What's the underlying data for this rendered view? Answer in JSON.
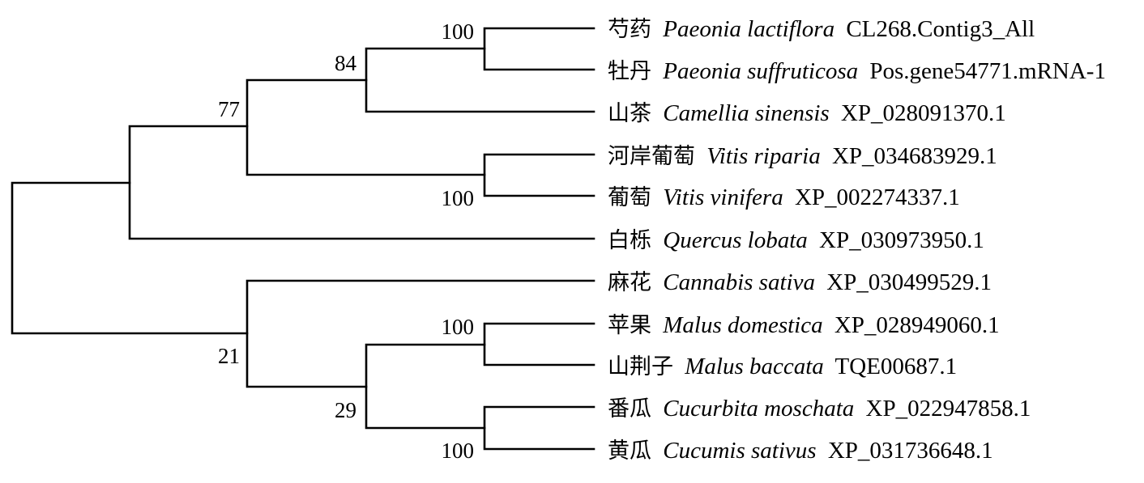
{
  "tree": {
    "taxa": [
      {
        "cn": "芍药",
        "species": "Paeonia lactiflora",
        "accession": "CL268.Contig3_All"
      },
      {
        "cn": "牡丹",
        "species": "Paeonia suffruticosa",
        "accession": "Pos.gene54771.mRNA-1"
      },
      {
        "cn": "山茶",
        "species": "Camellia sinensis",
        "accession": "XP_028091370.1"
      },
      {
        "cn": "河岸葡萄",
        "species": "Vitis riparia",
        "accession": "XP_034683929.1"
      },
      {
        "cn": "葡萄",
        "species": "Vitis vinifera",
        "accession": "XP_002274337.1"
      },
      {
        "cn": "白栎",
        "species": "Quercus lobata",
        "accession": "XP_030973950.1"
      },
      {
        "cn": "麻花",
        "species": "Cannabis sativa",
        "accession": "XP_030499529.1"
      },
      {
        "cn": "苹果",
        "species": "Malus domestica",
        "accession": "XP_028949060.1"
      },
      {
        "cn": "山荆子",
        "species": "Malus baccata",
        "accession": "TQE00687.1"
      },
      {
        "cn": "番瓜",
        "species": "Cucurbita moschata",
        "accession": "XP_022947858.1"
      },
      {
        "cn": "黄瓜",
        "species": "Cucumis sativus",
        "accession": "XP_031736648.1"
      }
    ],
    "bootstrap": [
      {
        "id": "paeonia-clade",
        "value": "100"
      },
      {
        "id": "paeonia-camellia-clade",
        "value": "84"
      },
      {
        "id": "upper-inner-clade",
        "value": "77"
      },
      {
        "id": "vitis-clade",
        "value": "100"
      },
      {
        "id": "lower-clade",
        "value": "21"
      },
      {
        "id": "malus-clade",
        "value": "100"
      },
      {
        "id": "malus-cucurbit-clade",
        "value": "29"
      },
      {
        "id": "cucurbit-clade",
        "value": "100"
      }
    ]
  }
}
